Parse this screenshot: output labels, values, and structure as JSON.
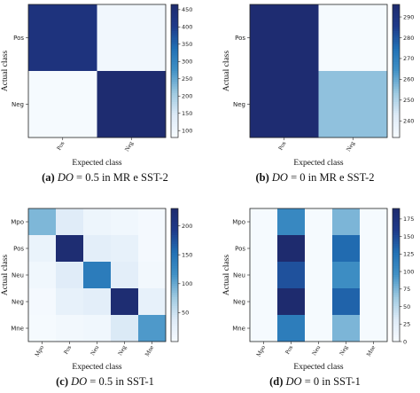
{
  "chart_data": [
    {
      "type": "heatmap",
      "caption": {
        "letter": "(a)",
        "do_label": "DO",
        "eq": " = 0.5 in MR e SST-2"
      },
      "xlabel": "Expected class",
      "ylabel": "Actual class",
      "x_categories": [
        "Pos",
        "Neg"
      ],
      "y_categories": [
        "Pos",
        "Neg"
      ],
      "values": [
        [
          430,
          95
        ],
        [
          85,
          460
        ]
      ],
      "colorbar": {
        "vmin": 80,
        "vmax": 465,
        "ticks": [
          100,
          150,
          200,
          250,
          300,
          350,
          400,
          450
        ]
      },
      "colormap": [
        "#f7fbff",
        "#deebf7",
        "#9ecae1",
        "#4292c6",
        "#2171b5",
        "#1e3a8a",
        "#1e2b6e"
      ]
    },
    {
      "type": "heatmap",
      "caption": {
        "letter": "(b)",
        "do_label": "DO",
        "eq": " = 0 in MR e SST-2"
      },
      "xlabel": "Expected class",
      "ylabel": "Actual class",
      "x_categories": [
        "Pos",
        "Neg"
      ],
      "y_categories": [
        "Pos",
        "Neg"
      ],
      "values": [
        [
          295,
          233
        ],
        [
          295,
          255
        ]
      ],
      "colorbar": {
        "vmin": 232,
        "vmax": 296,
        "ticks": [
          240,
          250,
          260,
          270,
          280,
          290
        ]
      },
      "colormap": [
        "#f7fbff",
        "#deebf7",
        "#9ecae1",
        "#4292c6",
        "#2171b5",
        "#1e3a8a",
        "#1e2b6e"
      ]
    },
    {
      "type": "heatmap",
      "caption": {
        "letter": "(c)",
        "do_label": "DO",
        "eq": " = 0.5 in SST-1"
      },
      "xlabel": "Expected class",
      "ylabel": "Actual class",
      "x_categories": [
        "Mpo",
        "Pos",
        "Neu",
        "Neg",
        "Mne"
      ],
      "y_categories": [
        "Mpo",
        "Pos",
        "Neu",
        "Neg",
        "Mne"
      ],
      "values": [
        [
          90,
          35,
          15,
          10,
          5
        ],
        [
          20,
          225,
          30,
          25,
          5
        ],
        [
          10,
          35,
          140,
          30,
          8
        ],
        [
          5,
          25,
          30,
          225,
          25
        ],
        [
          3,
          8,
          10,
          40,
          110
        ]
      ],
      "colorbar": {
        "vmin": 0,
        "vmax": 230,
        "ticks": [
          50,
          100,
          150,
          200
        ]
      },
      "colormap": [
        "#f7fbff",
        "#deebf7",
        "#9ecae1",
        "#4292c6",
        "#2171b5",
        "#1e3a8a",
        "#1e2b6e"
      ]
    },
    {
      "type": "heatmap",
      "caption": {
        "letter": "(d)",
        "do_label": "DO",
        "eq": " = 0 in SST-1"
      },
      "xlabel": "Expected class",
      "ylabel": "Actual class",
      "x_categories": [
        "Mpo",
        "Pos",
        "Neu",
        "Neg",
        "Mne"
      ],
      "y_categories": [
        "Mpo",
        "Pos",
        "Neu",
        "Neg",
        "Mne"
      ],
      "values": [
        [
          2,
          105,
          2,
          75,
          2
        ],
        [
          2,
          190,
          2,
          130,
          2
        ],
        [
          2,
          145,
          2,
          100,
          2
        ],
        [
          2,
          190,
          2,
          135,
          2
        ],
        [
          2,
          115,
          2,
          75,
          2
        ]
      ],
      "colorbar": {
        "vmin": 0,
        "vmax": 190,
        "ticks": [
          0,
          25,
          50,
          75,
          100,
          125,
          150,
          175
        ]
      },
      "colormap": [
        "#f7fbff",
        "#deebf7",
        "#9ecae1",
        "#4292c6",
        "#2171b5",
        "#1e3a8a",
        "#1e2b6e"
      ]
    }
  ]
}
